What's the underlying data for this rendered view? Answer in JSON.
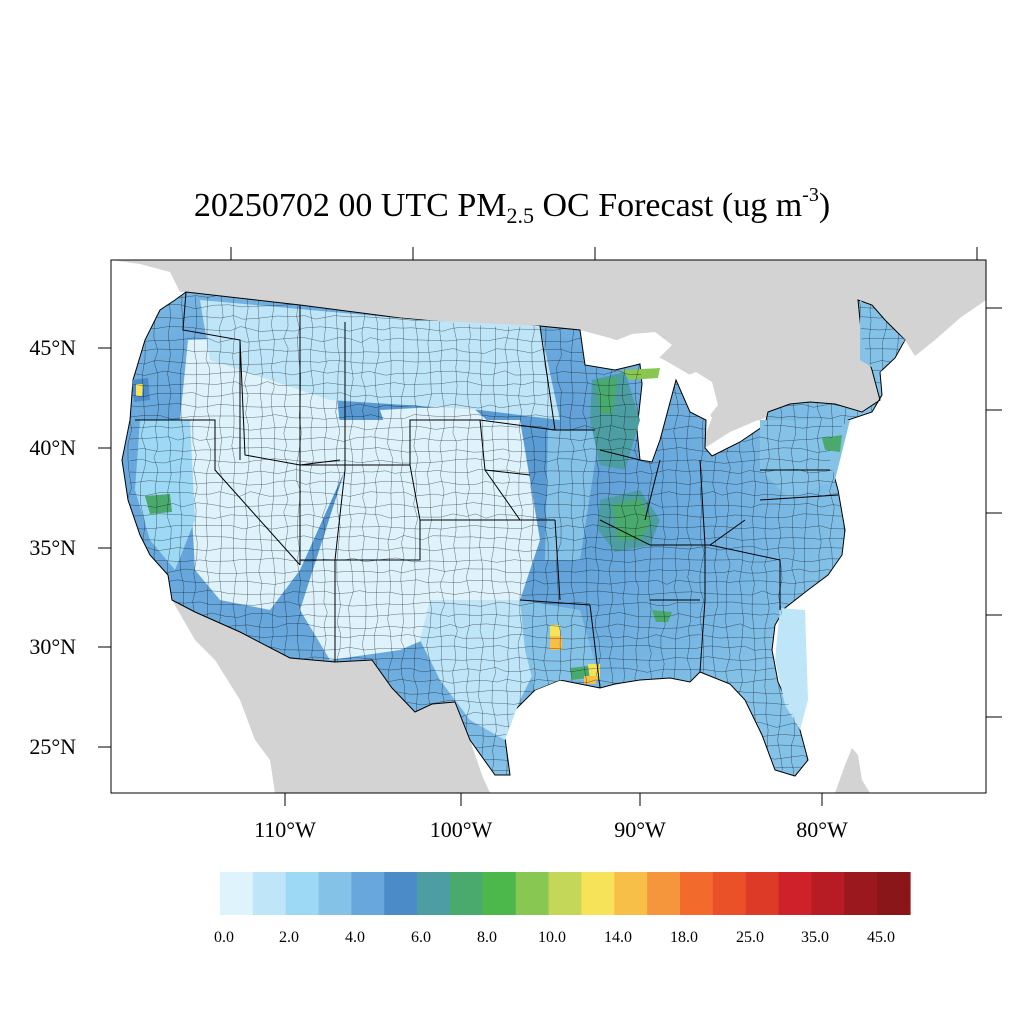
{
  "title": {
    "date": "20250702",
    "hour": "00",
    "tz": "UTC",
    "species": "PM",
    "species_subscript": "2.5",
    "product": "OC Forecast",
    "units_prefix": "(ug m",
    "units_exponent": "-3",
    "units_suffix": ")"
  },
  "axes": {
    "lat_labels": [
      "45°N",
      "40°N",
      "35°N",
      "30°N",
      "25°N"
    ],
    "lon_labels": [
      "110°W",
      "100°W",
      "90°W",
      "80°W"
    ]
  },
  "colorbar": {
    "colors": [
      "#dff3fc",
      "#bee6f8",
      "#9dd8f5",
      "#84c2e8",
      "#67a7dc",
      "#4a8bc8",
      "#4c9ea3",
      "#4aaa6e",
      "#4cb84c",
      "#88c852",
      "#c4d758",
      "#f6e35a",
      "#f7bf48",
      "#f6963c",
      "#f26b2c",
      "#ea5129",
      "#dd3a27",
      "#cf2129",
      "#b71c24",
      "#9b191e",
      "#8a1619"
    ],
    "labels": [
      "0.0",
      "2.0",
      "4.0",
      "6.0",
      "8.0",
      "10.0",
      "14.0",
      "18.0",
      "25.0",
      "35.0",
      "45.0"
    ]
  },
  "colors": {
    "land_other": "#d3d3d3",
    "water": "#ffffff",
    "border": "#000000"
  }
}
